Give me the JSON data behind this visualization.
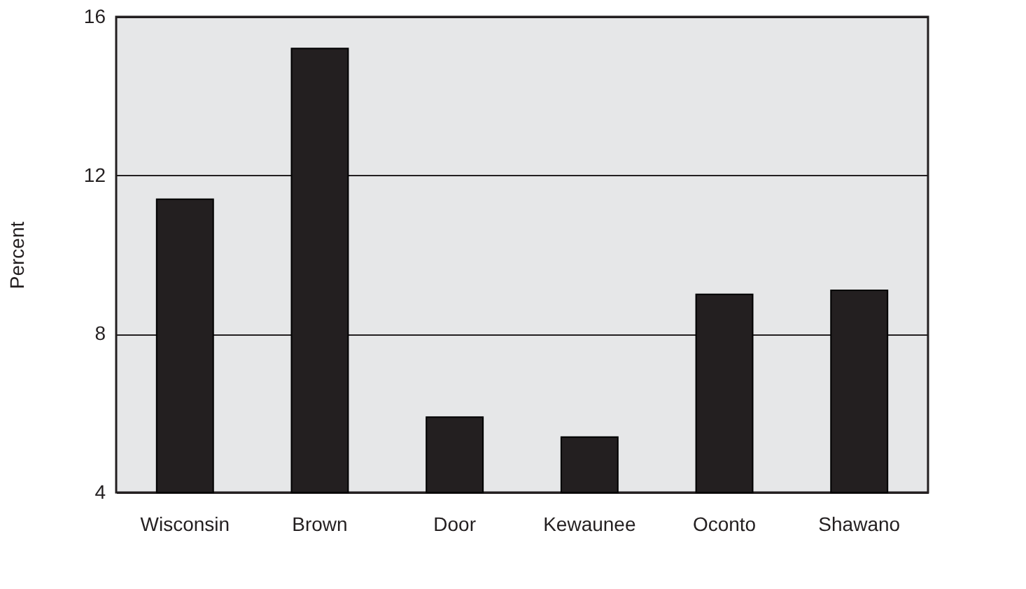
{
  "chart_data": {
    "type": "bar",
    "ylabel": "Percent",
    "categories": [
      "Wisconsin",
      "Brown",
      "Door",
      "Kewaunee",
      "Oconto",
      "Shawano"
    ],
    "values": [
      11.4,
      15.2,
      5.9,
      5.4,
      9.0,
      9.1
    ],
    "color": "#231f20",
    "ylim": [
      4,
      16
    ],
    "yticks": [
      4,
      8,
      12,
      16
    ],
    "grid": "y"
  }
}
